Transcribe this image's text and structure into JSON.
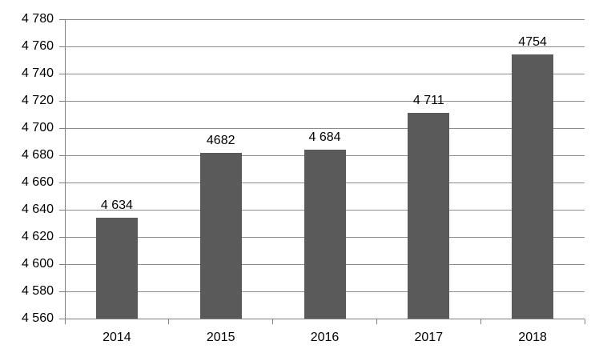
{
  "chart_data": {
    "type": "bar",
    "title": "",
    "xlabel": "",
    "ylabel": "",
    "categories": [
      "2014",
      "2015",
      "2016",
      "2017",
      "2018"
    ],
    "values": [
      4634,
      4682,
      4684,
      4711,
      4754
    ],
    "value_labels": [
      "4 634",
      "4682",
      "4 684",
      "4 711",
      "4754"
    ],
    "y_ticks": [
      4560,
      4580,
      4600,
      4620,
      4640,
      4660,
      4680,
      4700,
      4720,
      4740,
      4760,
      4780
    ],
    "y_tick_labels": [
      "4 560",
      "4 580",
      "4 600",
      "4 620",
      "4 640",
      "4 660",
      "4 680",
      "4 700",
      "4 720",
      "4 740",
      "4 760",
      "4 780"
    ],
    "ylim": [
      4560,
      4780
    ],
    "grid": true,
    "legend": false,
    "colors": {
      "bar": "#5a5a5a",
      "gridline": "#8c8c8c",
      "axis": "#7f7f7f",
      "text": "#000000",
      "background": "#ffffff"
    }
  }
}
